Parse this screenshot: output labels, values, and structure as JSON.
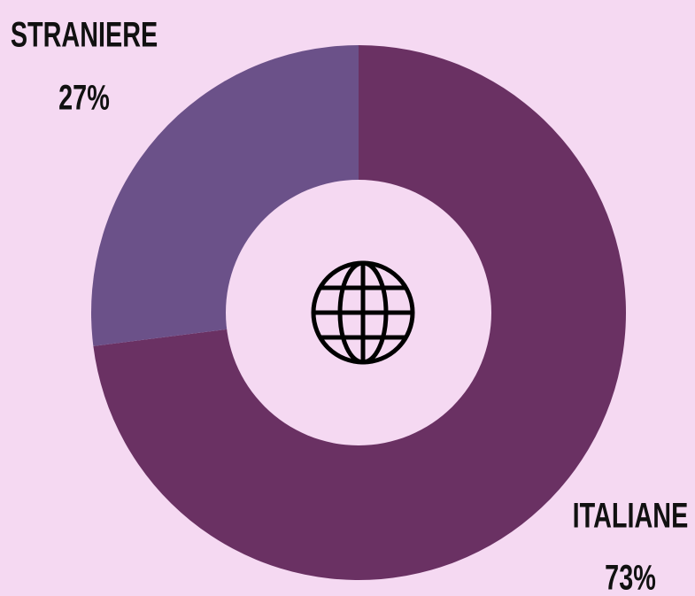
{
  "chart_data": {
    "type": "donut",
    "categories": [
      "ITALIANE",
      "STRANIERE"
    ],
    "values": [
      73,
      27
    ],
    "value_labels": [
      "73%",
      "27%"
    ],
    "colors": [
      "#6a3163",
      "#6b5189"
    ]
  }
}
